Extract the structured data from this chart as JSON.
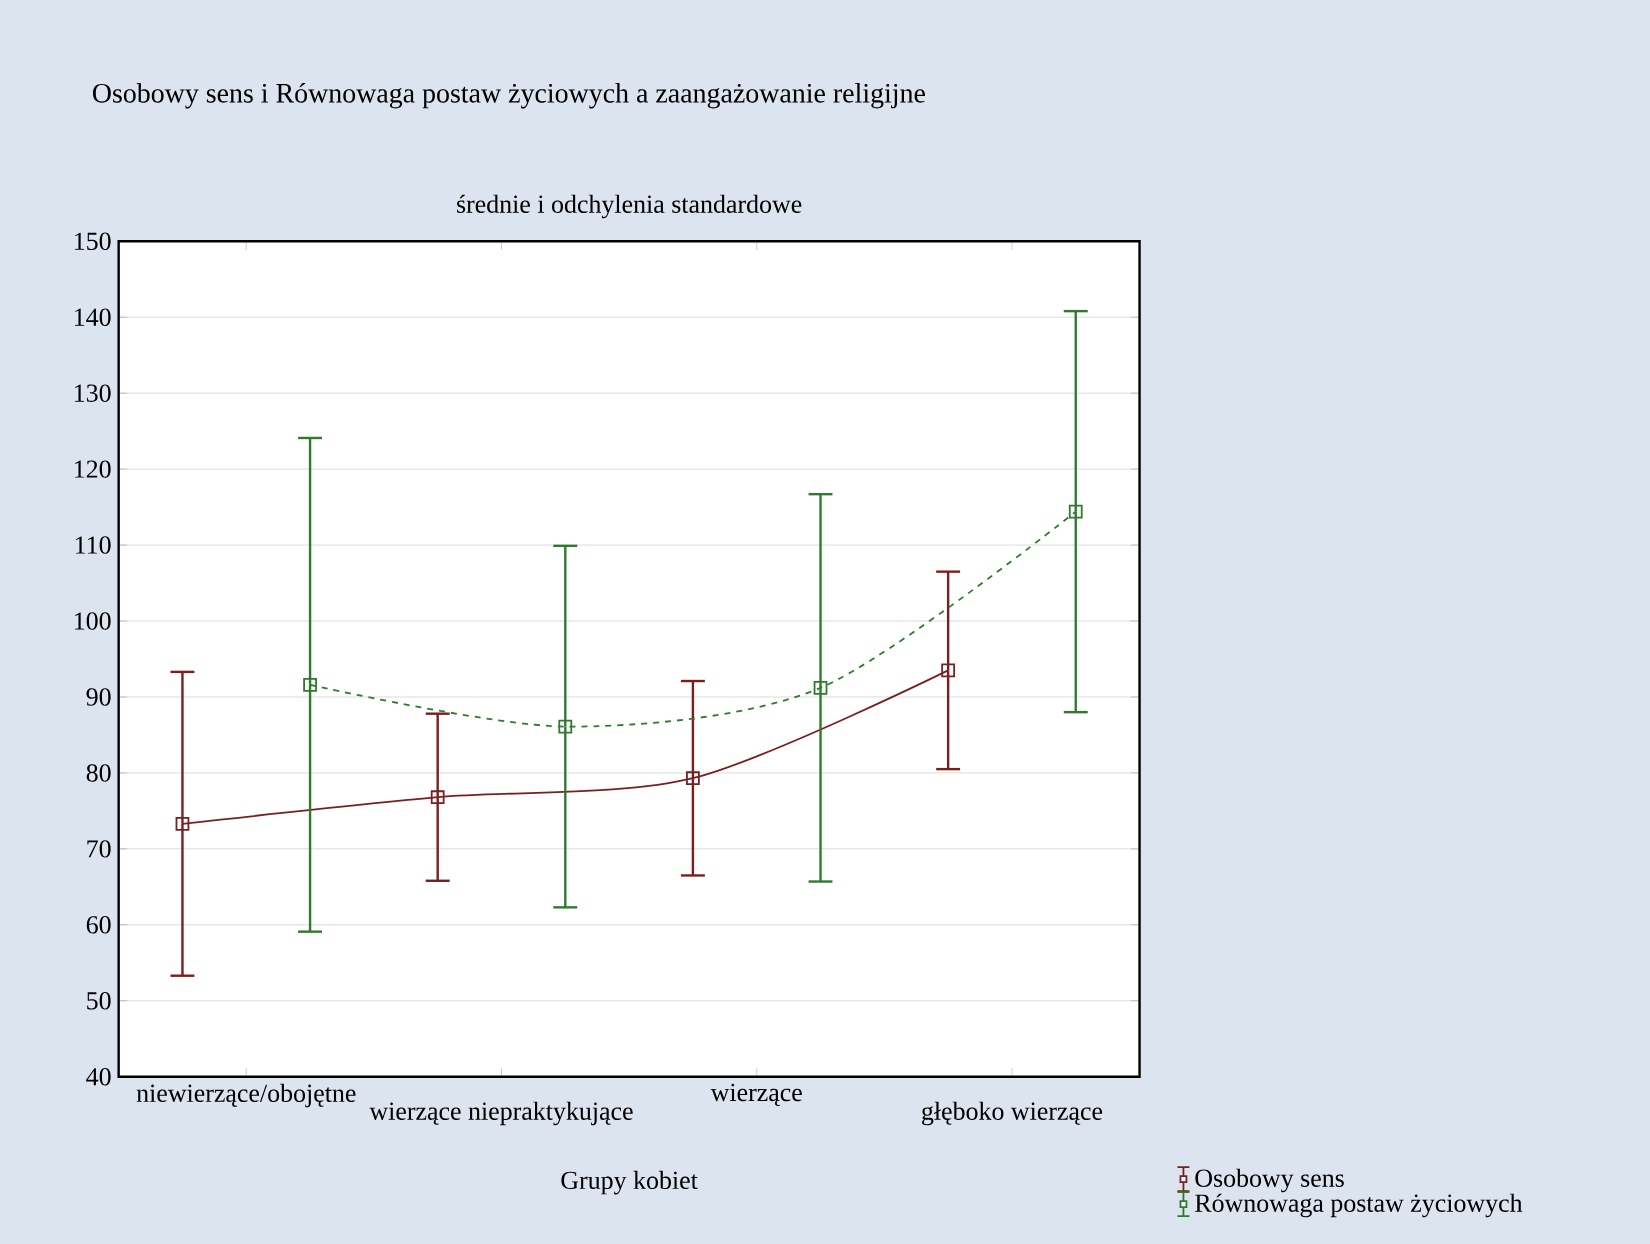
{
  "chart_data": {
    "type": "line",
    "title": "Osobowy sens i Równowaga postaw życiowych a zaangażowanie religijne",
    "subtitle": "średnie i odchylenia standardowe",
    "xlabel": "Grupy kobiet",
    "categories": [
      "niewierzące/obojętne",
      "wierzące niepraktykujące",
      "wierzące",
      "głęboko wierzące"
    ],
    "series": [
      {
        "name": "Osobowy sens",
        "color": "#7a1f1f",
        "line_style": "solid",
        "values": [
          73.3,
          76.8,
          79.3,
          93.5
        ],
        "errors": [
          20.0,
          11.0,
          12.8,
          13.0
        ]
      },
      {
        "name": "Równowaga postaw życiowych",
        "color": "#2e7b2e",
        "line_style": "dashed",
        "values": [
          91.6,
          86.1,
          91.2,
          114.4
        ],
        "errors": [
          32.5,
          23.8,
          25.5,
          26.4
        ]
      }
    ],
    "ylim": [
      40,
      150
    ],
    "yticks": [
      40,
      50,
      60,
      70,
      80,
      90,
      100,
      110,
      120,
      130,
      140,
      150
    ],
    "grid": "y",
    "legend": "bottom right",
    "marker": "square"
  }
}
